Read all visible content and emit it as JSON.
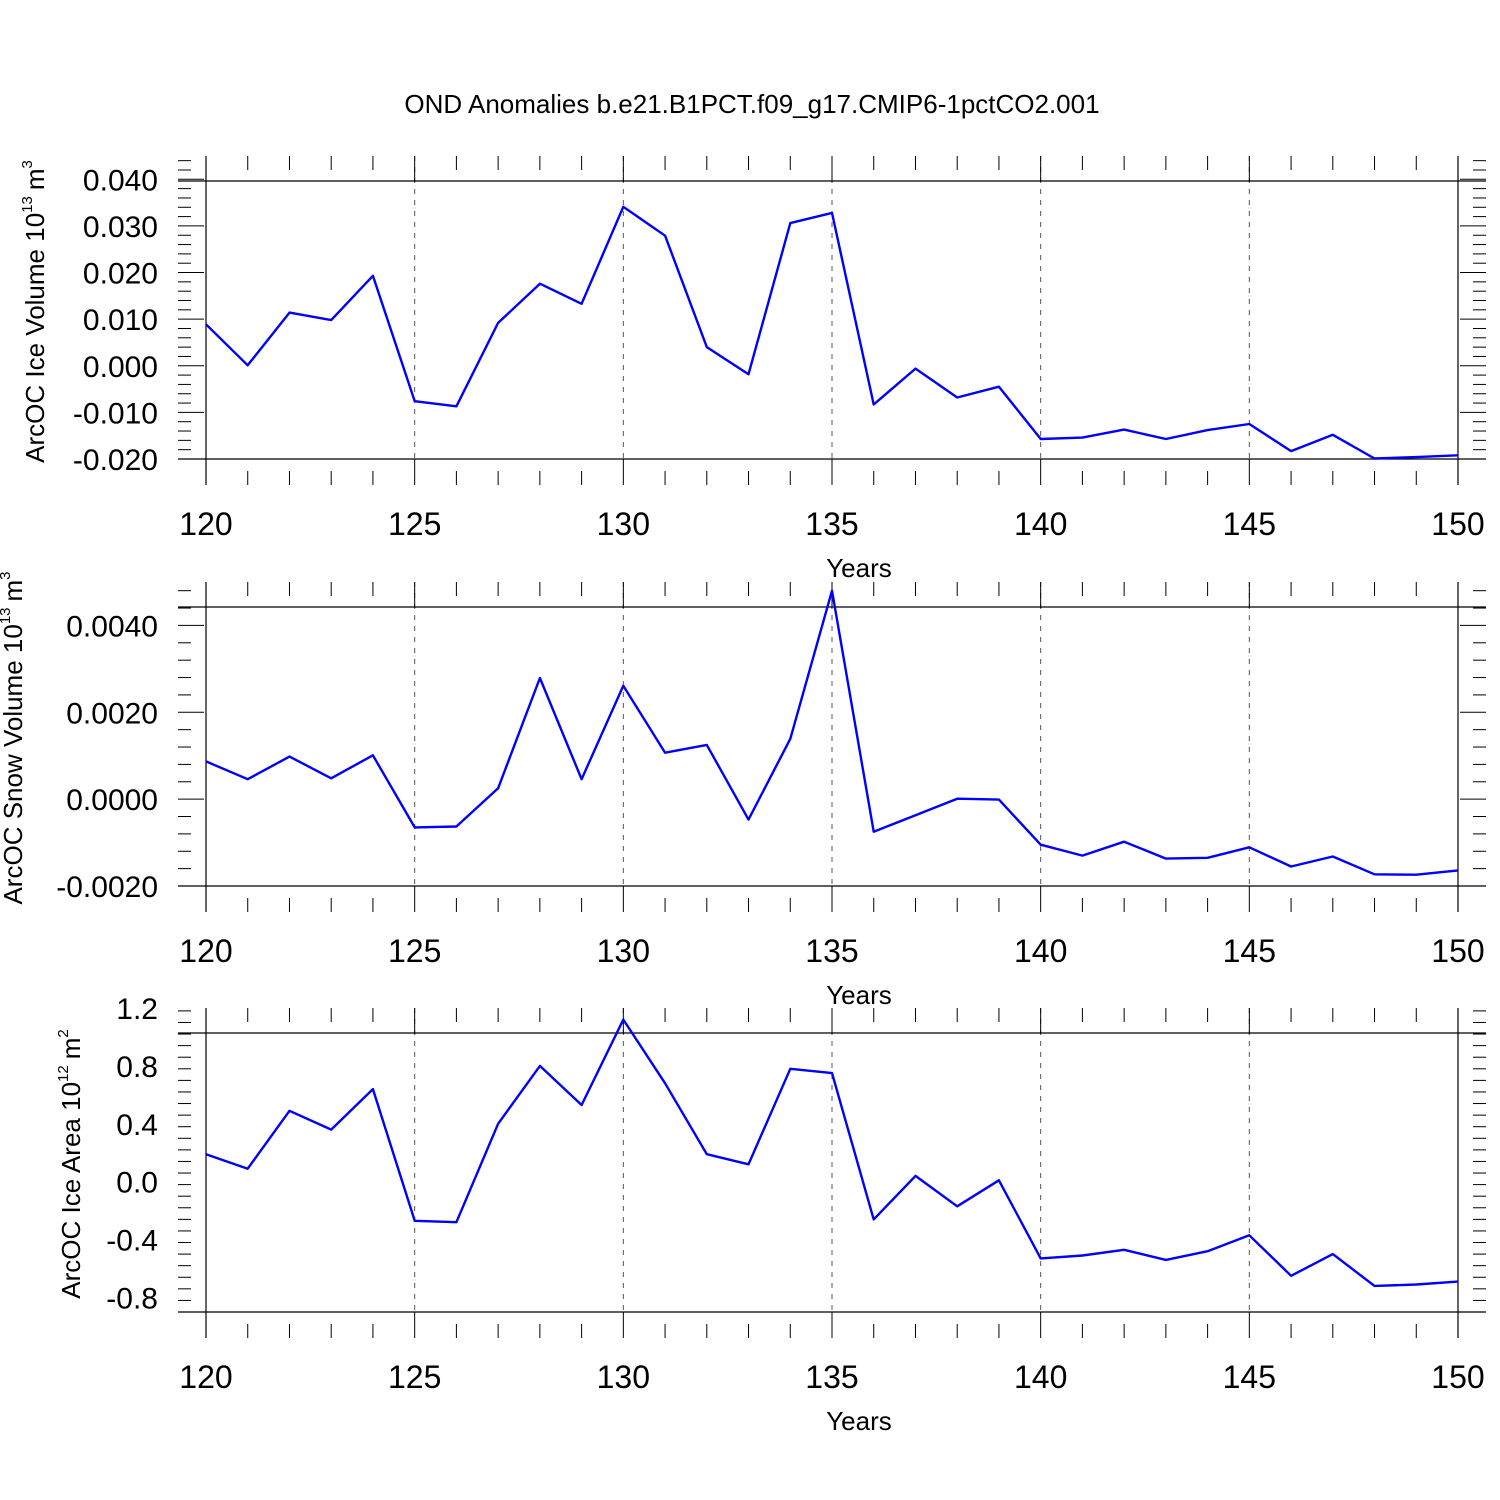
{
  "chart_data": [
    {
      "type": "line",
      "title": "OND Anomalies b.e21.B1PCT.f09_g17.CMIP6-1pctCO2.001",
      "xlabel": "Years",
      "ylabel": "ArcOC Ice Volume 10",
      "ylabel_exp": "13",
      "ylabel_unit": "m",
      "ylabel_unit_exp": "3",
      "ylim": [
        -0.02,
        0.045
      ],
      "xlim": [
        120,
        150
      ],
      "xticks": [
        120,
        125,
        130,
        135,
        140,
        145,
        150
      ],
      "xtick_labels": [
        "120",
        "125",
        "130",
        "135",
        "140",
        "145",
        "150"
      ],
      "yticks": [
        -0.02,
        -0.01,
        0.0,
        0.01,
        0.02,
        0.03,
        0.04
      ],
      "ytick_labels": [
        "-0.020",
        "-0.010",
        "0.000",
        "0.010",
        "0.020",
        "0.030",
        "0.040"
      ],
      "grid_x": true,
      "color": "#0000ff",
      "x": [
        120,
        121,
        122,
        123,
        124,
        125,
        126,
        127,
        128,
        129,
        130,
        131,
        132,
        133,
        134,
        135,
        136,
        137,
        138,
        139,
        140,
        141,
        142,
        143,
        144,
        145,
        146,
        147,
        148,
        149,
        150
      ],
      "values": [
        0.0089,
        0.0001,
        0.0114,
        0.0098,
        0.0193,
        -0.0076,
        -0.0087,
        0.0092,
        0.0176,
        0.0133,
        0.0341,
        0.0279,
        0.004,
        -0.0018,
        0.0306,
        0.0328,
        -0.0083,
        -0.0006,
        -0.0068,
        -0.0045,
        -0.0157,
        -0.0154,
        -0.0137,
        -0.0157,
        -0.0138,
        -0.0125,
        -0.0183,
        -0.0148,
        -0.0199,
        -0.0196,
        -0.0192
      ]
    },
    {
      "type": "line",
      "xlabel": "Years",
      "ylabel": "ArcOC Snow Volume 10",
      "ylabel_exp": "13",
      "ylabel_unit": "m",
      "ylabel_unit_exp": "3",
      "ylim": [
        -0.002,
        0.005
      ],
      "xlim": [
        120,
        150
      ],
      "xticks": [
        120,
        125,
        130,
        135,
        140,
        145,
        150
      ],
      "xtick_labels": [
        "120",
        "125",
        "130",
        "135",
        "140",
        "145",
        "150"
      ],
      "yticks": [
        -0.002,
        0.0,
        0.002,
        0.004
      ],
      "ytick_labels": [
        "-0.0020",
        "0.0000",
        "0.0020",
        "0.0040"
      ],
      "grid_x": true,
      "color": "#0000ff",
      "x": [
        120,
        121,
        122,
        123,
        124,
        125,
        126,
        127,
        128,
        129,
        130,
        131,
        132,
        133,
        134,
        135,
        136,
        137,
        138,
        139,
        140,
        141,
        142,
        143,
        144,
        145,
        146,
        147,
        148,
        149,
        150
      ],
      "values": [
        0.00087,
        0.00046,
        0.00098,
        0.00048,
        0.00101,
        -0.00065,
        -0.00063,
        0.00025,
        0.00279,
        0.00046,
        0.00261,
        0.00107,
        0.00125,
        -0.00047,
        0.00139,
        0.0048,
        -0.00075,
        -0.00037,
        1e-05,
        -1e-05,
        -0.00105,
        -0.0013,
        -0.00098,
        -0.00137,
        -0.00135,
        -0.00111,
        -0.00155,
        -0.00132,
        -0.00173,
        -0.00174,
        -0.00164
      ]
    },
    {
      "type": "line",
      "xlabel": "Years",
      "ylabel": "ArcOC Ice Area 10",
      "ylabel_exp": "12",
      "ylabel_unit": "m",
      "ylabel_unit_exp": "2",
      "ylim": [
        -0.9,
        1.2
      ],
      "xlim": [
        120,
        150
      ],
      "xticks": [
        120,
        125,
        130,
        135,
        140,
        145,
        150
      ],
      "xtick_labels": [
        "120",
        "125",
        "130",
        "135",
        "140",
        "145",
        "150"
      ],
      "yticks": [
        -0.8,
        -0.4,
        0.0,
        0.4,
        0.8,
        1.2
      ],
      "ytick_labels": [
        "-0.8",
        "-0.4",
        "0.0",
        "0.4",
        "0.8",
        "1.2"
      ],
      "grid_x": true,
      "color": "#0000ff",
      "x": [
        120,
        121,
        122,
        123,
        124,
        125,
        126,
        127,
        128,
        129,
        130,
        131,
        132,
        133,
        134,
        135,
        136,
        137,
        138,
        139,
        140,
        141,
        142,
        143,
        144,
        145,
        146,
        147,
        148,
        149,
        150
      ],
      "values": [
        0.19,
        0.09,
        0.49,
        0.36,
        0.64,
        -0.27,
        -0.28,
        0.4,
        0.8,
        0.53,
        1.12,
        0.68,
        0.19,
        0.12,
        0.78,
        0.75,
        -0.26,
        0.04,
        -0.17,
        0.01,
        -0.53,
        -0.51,
        -0.47,
        -0.54,
        -0.48,
        -0.37,
        -0.65,
        -0.5,
        -0.72,
        -0.71,
        -0.69
      ]
    }
  ]
}
